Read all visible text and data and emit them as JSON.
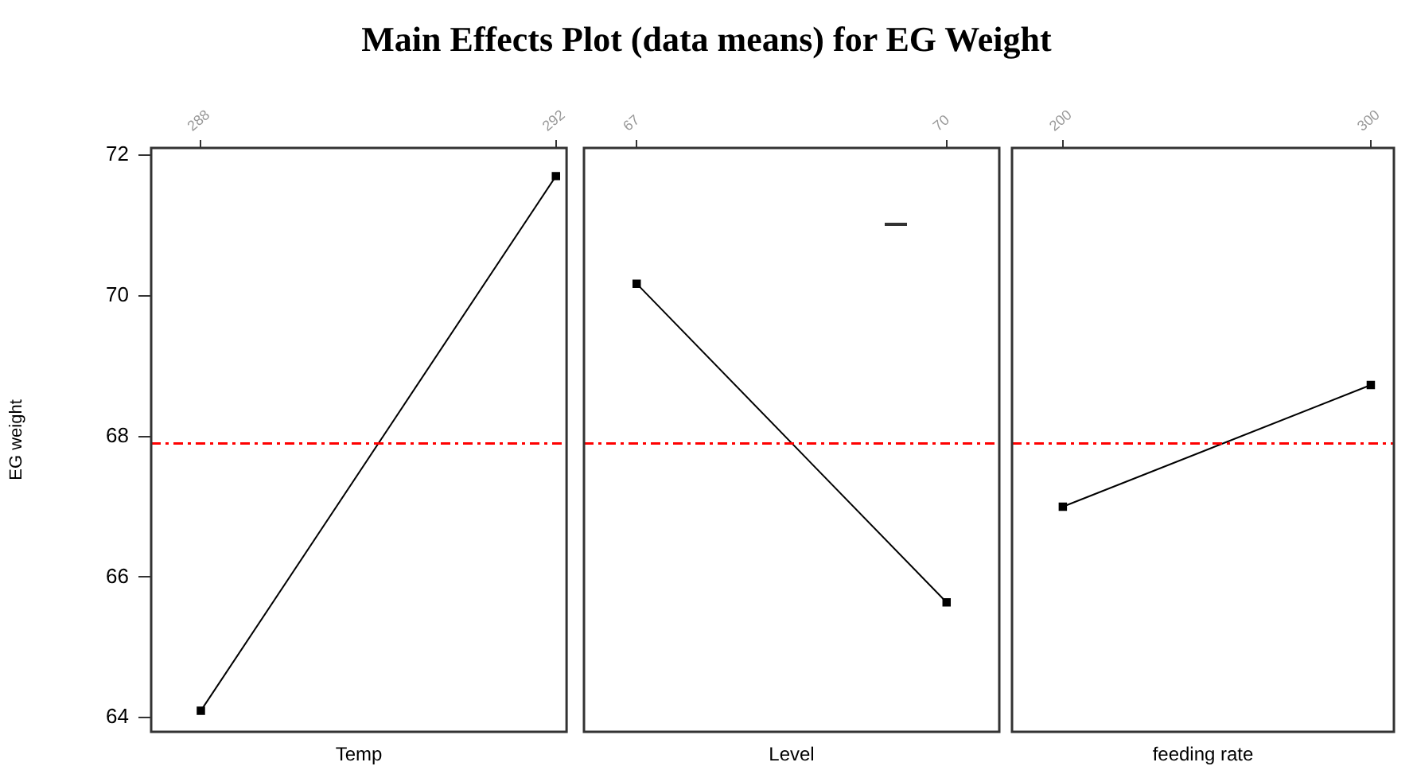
{
  "chart_data": [
    {
      "type": "line",
      "title": "Main Effects Plot (data means) for EG Weight",
      "xlabel": "Temp",
      "ylabel": "EG weight",
      "x": [
        288,
        292
      ],
      "xlim": [
        287.44,
        292.12
      ],
      "xticks": [
        288,
        292
      ],
      "ylim": [
        63.8,
        72.1
      ],
      "yticks": [
        64,
        66,
        68,
        70,
        72
      ],
      "marker": "square",
      "grid": false,
      "legend": false,
      "series": [
        {
          "color": "#000000",
          "values": [
            64.1,
            71.7
          ]
        }
      ],
      "ref_lines": [
        {
          "axis": "y",
          "value": 67.9,
          "color": "#ff0000",
          "line_style": "dashed"
        }
      ]
    },
    {
      "type": "line",
      "xlabel": "Level",
      "x": [
        67,
        70
      ],
      "xlim": [
        66.49,
        70.51
      ],
      "xticks": [
        67,
        70
      ],
      "ylim": [
        63.8,
        72.1
      ],
      "yticks": [
        64,
        66,
        68,
        70,
        72
      ],
      "tick_labels": "x",
      "marker": "square",
      "grid": false,
      "legend": false,
      "series": [
        {
          "color": "#000000",
          "values": [
            70.17,
            65.64
          ]
        }
      ],
      "ref_lines": [
        {
          "axis": "y",
          "value": 67.9,
          "color": "#ff0000",
          "line_style": "dashed"
        }
      ]
    },
    {
      "type": "line",
      "xlabel": "feeding rate",
      "x": [
        200,
        300
      ],
      "xlim": [
        183.5,
        307.5
      ],
      "xticks": [
        200,
        300
      ],
      "ylim": [
        63.8,
        72.1
      ],
      "yticks": [
        64,
        66,
        68,
        70,
        72
      ],
      "tick_labels": "x",
      "marker": "square",
      "grid": false,
      "legend": false,
      "series": [
        {
          "color": "#000000",
          "values": [
            67.0,
            68.73
          ]
        }
      ],
      "ref_lines": [
        {
          "axis": "y",
          "value": 67.9,
          "color": "#ff0000",
          "line_style": "dashed"
        }
      ]
    }
  ]
}
